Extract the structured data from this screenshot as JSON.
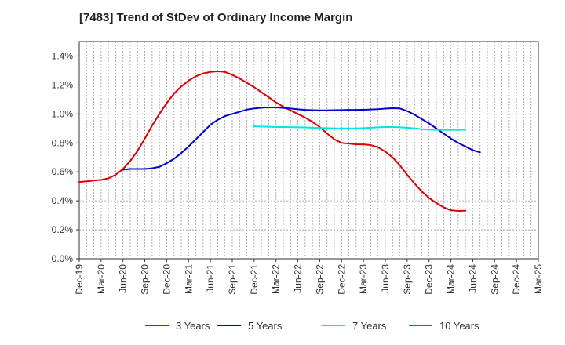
{
  "chart_data": {
    "type": "line",
    "title": "[7483]  Trend of StDev of Ordinary Income Margin",
    "xlabel": "",
    "ylabel": "",
    "ylim": [
      0.0,
      1.5
    ],
    "yticks": [
      "0.0%",
      "0.2%",
      "0.4%",
      "0.6%",
      "0.8%",
      "1.0%",
      "1.2%",
      "1.4%"
    ],
    "ytick_values": [
      0.0,
      0.2,
      0.4,
      0.6,
      0.8,
      1.0,
      1.2,
      1.4
    ],
    "y_unit": "%",
    "x_ticks": [
      "Dec-19",
      "Mar-20",
      "Jun-20",
      "Sep-20",
      "Dec-20",
      "Mar-21",
      "Jun-21",
      "Sep-21",
      "Dec-21",
      "Mar-22",
      "Jun-22",
      "Sep-22",
      "Dec-22",
      "Mar-23",
      "Jun-23",
      "Sep-23",
      "Dec-23",
      "Mar-24",
      "Jun-24",
      "Sep-24",
      "Dec-24",
      "Mar-25"
    ],
    "grid": true,
    "legend_position": "bottom",
    "series": [
      {
        "name": "3 Years",
        "color": "#dd0000",
        "start_index": 0,
        "values": [
          0.53,
          0.535,
          0.54,
          0.545,
          0.555,
          0.58,
          0.62,
          0.675,
          0.745,
          0.83,
          0.92,
          1.0,
          1.075,
          1.14,
          1.19,
          1.23,
          1.26,
          1.28,
          1.29,
          1.295,
          1.29,
          1.27,
          1.245,
          1.215,
          1.185,
          1.15,
          1.115,
          1.08,
          1.05,
          1.025,
          1.0,
          0.975,
          0.945,
          0.91,
          0.865,
          0.825,
          0.8,
          0.795,
          0.79,
          0.79,
          0.785,
          0.77,
          0.74,
          0.7,
          0.645,
          0.58,
          0.52,
          0.465,
          0.42,
          0.385,
          0.355,
          0.335,
          0.33,
          0.332
        ]
      },
      {
        "name": "5 Years",
        "color": "#0000cc",
        "start_index": 6,
        "values": [
          0.615,
          0.62,
          0.62,
          0.62,
          0.625,
          0.635,
          0.66,
          0.69,
          0.73,
          0.775,
          0.825,
          0.875,
          0.925,
          0.96,
          0.985,
          1.0,
          1.015,
          1.03,
          1.038,
          1.043,
          1.045,
          1.045,
          1.042,
          1.038,
          1.032,
          1.028,
          1.026,
          1.025,
          1.025,
          1.026,
          1.027,
          1.028,
          1.028,
          1.029,
          1.031,
          1.033,
          1.037,
          1.04,
          1.038,
          1.02,
          0.995,
          0.965,
          0.935,
          0.9,
          0.865,
          0.83,
          0.8,
          0.775,
          0.75,
          0.735
        ]
      },
      {
        "name": "7 Years",
        "color": "#00e5e5",
        "start_index": 24,
        "values": [
          0.915,
          0.913,
          0.912,
          0.91,
          0.91,
          0.909,
          0.908,
          0.907,
          0.905,
          0.903,
          0.902,
          0.9,
          0.9,
          0.9,
          0.9,
          0.902,
          0.905,
          0.908,
          0.91,
          0.91,
          0.908,
          0.905,
          0.9,
          0.895,
          0.892,
          0.891,
          0.89,
          0.89,
          0.89,
          0.891
        ]
      },
      {
        "name": "10 Years",
        "color": "#228B22",
        "start_index": 0,
        "values": []
      }
    ]
  }
}
